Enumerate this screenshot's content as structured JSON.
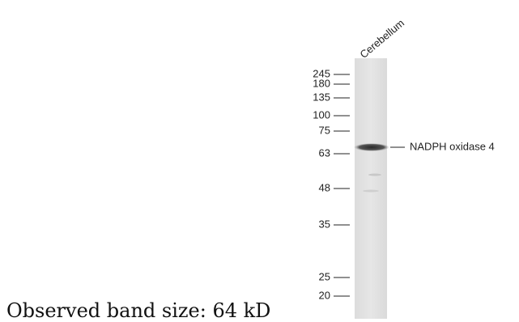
{
  "lane": {
    "label": "Cerebellum"
  },
  "markers": [
    "245",
    "180",
    "135",
    "100",
    "75",
    "63",
    "48",
    "35",
    "25",
    "20"
  ],
  "band": {
    "label": "NADPH oxidase 4"
  },
  "caption": "Observed band size: 64 kD"
}
